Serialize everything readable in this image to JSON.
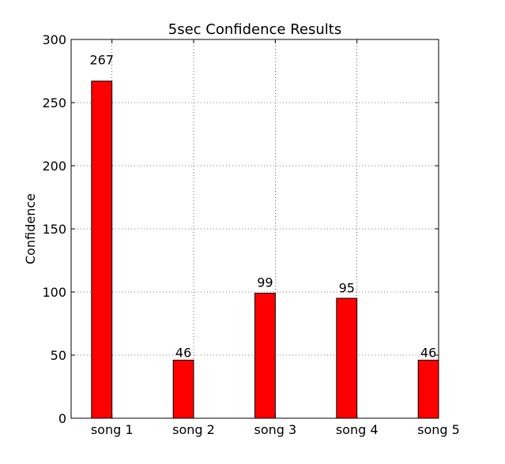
{
  "chart_data": {
    "type": "bar",
    "title": "5sec Confidence Results",
    "xlabel": "",
    "ylabel": "Confidence",
    "categories": [
      "song 1",
      "song 2",
      "song 3",
      "song 4",
      "song 5"
    ],
    "values": [
      267,
      46,
      99,
      95,
      46
    ],
    "data_labels": [
      "267",
      "46",
      "99",
      "95",
      "46"
    ],
    "ylim": [
      0,
      300
    ],
    "yticks": [
      0,
      50,
      100,
      150,
      200,
      250,
      300
    ],
    "ytick_labels": [
      "0",
      "50",
      "100",
      "150",
      "200",
      "250",
      "300"
    ],
    "grid": true,
    "bar_color": "#ff0000",
    "edge_color": "#000000"
  }
}
